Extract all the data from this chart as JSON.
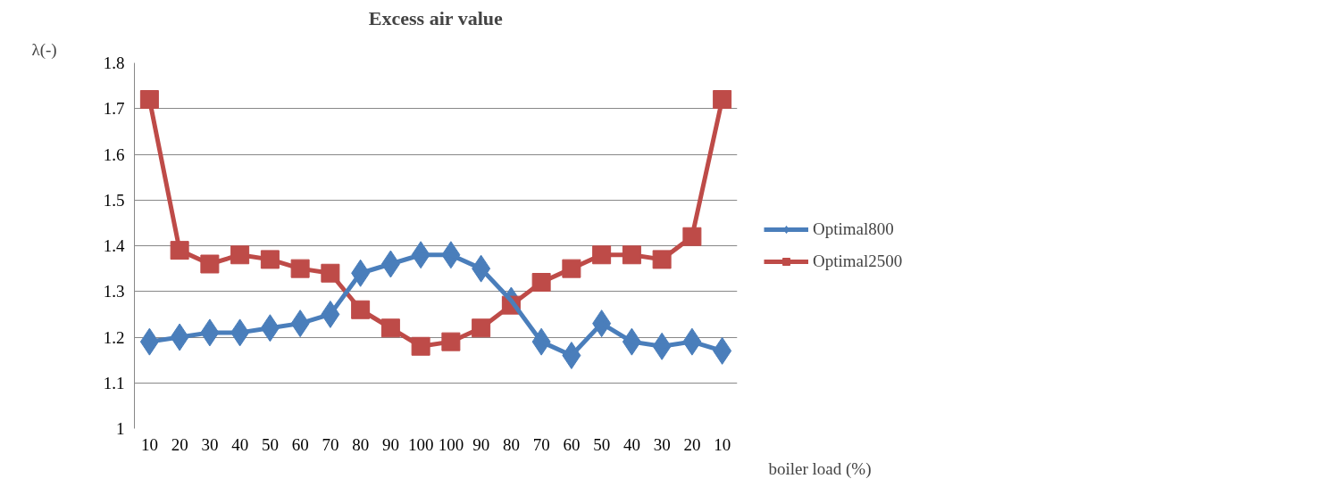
{
  "chart_data": {
    "type": "line",
    "title": "Excess air value",
    "xlabel": "boiler load (%)",
    "ylabel": "λ(-)",
    "categories": [
      "10",
      "20",
      "30",
      "40",
      "50",
      "60",
      "70",
      "80",
      "90",
      "100",
      "100",
      "90",
      "80",
      "70",
      "60",
      "50",
      "40",
      "30",
      "20",
      "10"
    ],
    "series": [
      {
        "name": "Optimal800",
        "color": "#4a7ebb",
        "marker": "diamond",
        "values": [
          1.19,
          1.2,
          1.21,
          1.21,
          1.22,
          1.23,
          1.25,
          1.34,
          1.36,
          1.38,
          1.38,
          1.35,
          1.28,
          1.19,
          1.16,
          1.23,
          1.19,
          1.18,
          1.19,
          1.17
        ]
      },
      {
        "name": "Optimal2500",
        "color": "#be4b48",
        "marker": "square",
        "values": [
          1.72,
          1.39,
          1.36,
          1.38,
          1.37,
          1.35,
          1.34,
          1.26,
          1.22,
          1.18,
          1.19,
          1.22,
          1.27,
          1.32,
          1.35,
          1.38,
          1.38,
          1.37,
          1.42,
          1.72
        ]
      }
    ],
    "ylim": [
      1,
      1.8
    ],
    "yticks": [
      1,
      1.1,
      1.2,
      1.3,
      1.4,
      1.5,
      1.6,
      1.7,
      1.8
    ],
    "grid": "y",
    "legend": "right",
    "line_style": "solid"
  }
}
